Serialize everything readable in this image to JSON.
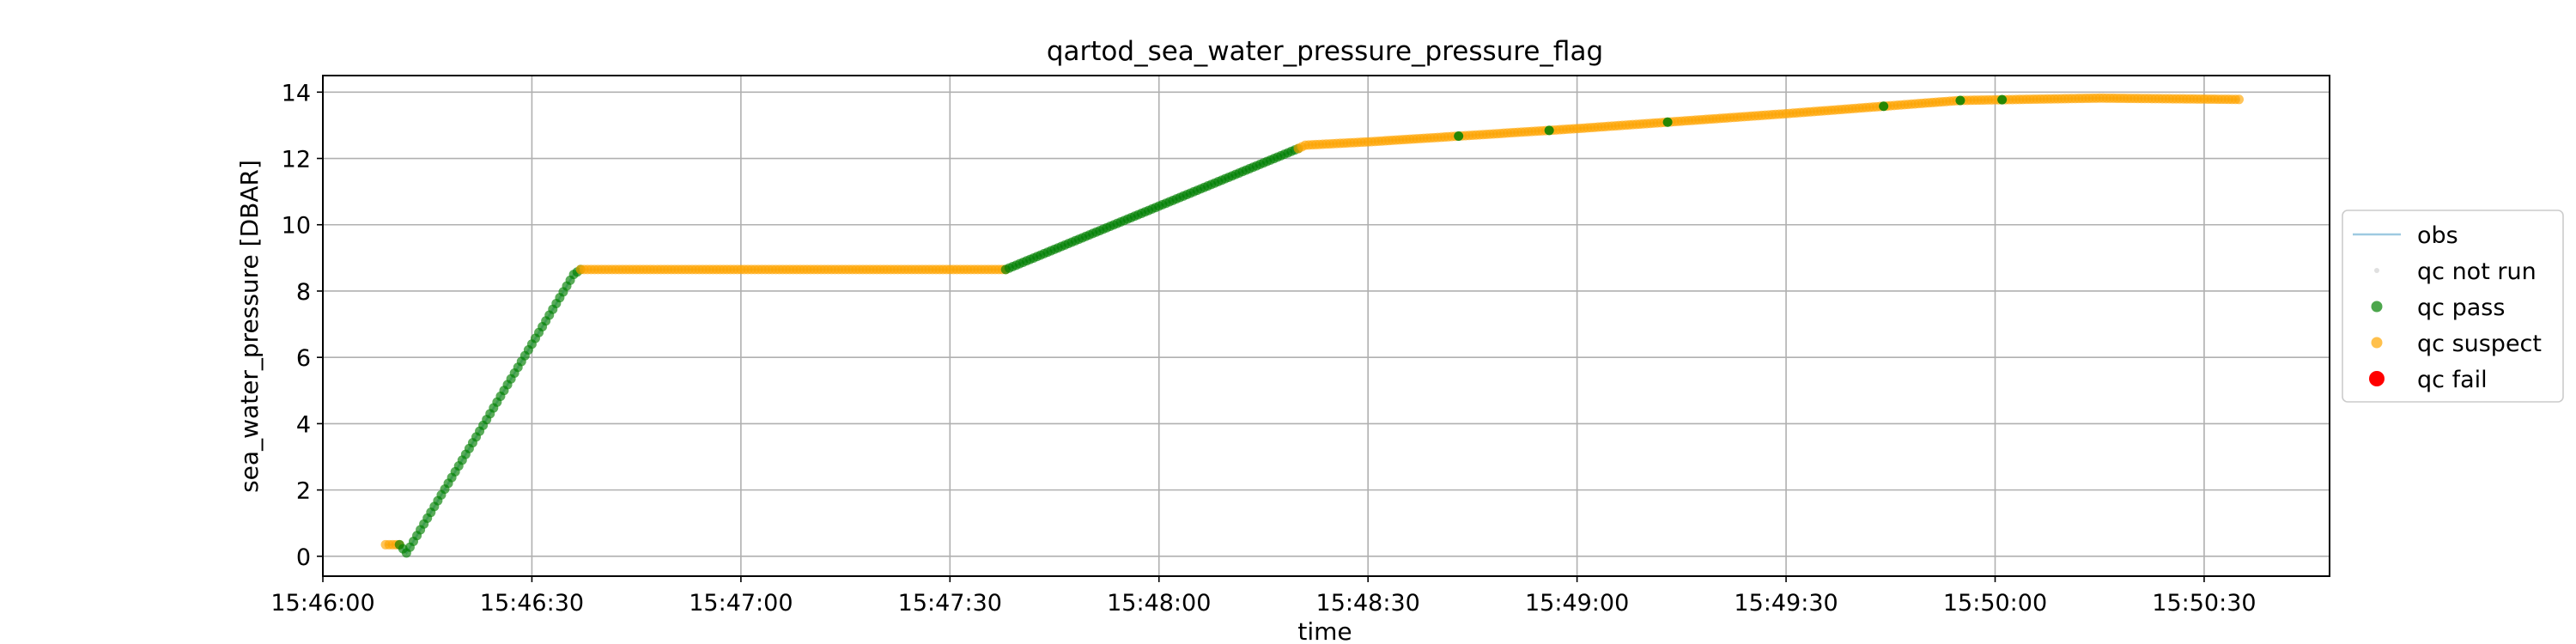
{
  "chart_data": {
    "type": "scatter",
    "title": "qartod_sea_water_pressure_pressure_flag",
    "xlabel": "time",
    "ylabel": "sea_water_pressure [DBAR]",
    "x_axis_type": "time",
    "xlim": [
      "15:46:00",
      "15:50:48"
    ],
    "ylim": [
      -0.6,
      14.5
    ],
    "grid": true,
    "legend_position": "outside-right",
    "x_ticks": [
      "15:46:00",
      "15:46:30",
      "15:47:00",
      "15:47:30",
      "15:48:00",
      "15:48:30",
      "15:49:00",
      "15:49:30",
      "15:50:00",
      "15:50:30"
    ],
    "y_ticks": [
      0,
      2,
      4,
      6,
      8,
      10,
      12,
      14
    ],
    "obs_profile": [
      {
        "time": "15:46:09",
        "pressure": 0.35
      },
      {
        "time": "15:46:11",
        "pressure": 0.35
      },
      {
        "time": "15:46:12",
        "pressure": 0.1
      },
      {
        "time": "15:46:36",
        "pressure": 8.5
      },
      {
        "time": "15:46:37",
        "pressure": 8.65
      },
      {
        "time": "15:47:38",
        "pressure": 8.65
      },
      {
        "time": "15:48:20",
        "pressure": 12.3
      },
      {
        "time": "15:48:21",
        "pressure": 12.4
      },
      {
        "time": "15:48:30",
        "pressure": 12.5
      },
      {
        "time": "15:49:00",
        "pressure": 12.9
      },
      {
        "time": "15:49:30",
        "pressure": 13.35
      },
      {
        "time": "15:49:55",
        "pressure": 13.75
      },
      {
        "time": "15:50:15",
        "pressure": 13.82
      },
      {
        "time": "15:50:35",
        "pressure": 13.78
      }
    ],
    "flag_segments": [
      {
        "series": "qc suspect",
        "start": "15:46:09",
        "end": "15:46:11"
      },
      {
        "series": "qc pass",
        "start": "15:46:11",
        "end": "15:46:37"
      },
      {
        "series": "qc suspect",
        "start": "15:46:37",
        "end": "15:47:38"
      },
      {
        "series": "qc pass",
        "start": "15:47:38",
        "end": "15:48:20"
      },
      {
        "series": "qc suspect",
        "start": "15:48:20",
        "end": "15:50:35"
      }
    ],
    "pass_points_in_suspect": [
      "15:48:43",
      "15:48:56",
      "15:49:13",
      "15:49:44",
      "15:49:55",
      "15:50:01"
    ],
    "series": [
      {
        "name": "obs",
        "color": "#9ecae1",
        "marker": "line"
      },
      {
        "name": "qc not run",
        "color": "#d3d3d3",
        "marker": "small-dot"
      },
      {
        "name": "qc pass",
        "color": "#008000",
        "marker": "dot"
      },
      {
        "name": "qc suspect",
        "color": "#ffa500",
        "marker": "dot"
      },
      {
        "name": "qc fail",
        "color": "#ff0000",
        "marker": "large-dot"
      }
    ]
  }
}
